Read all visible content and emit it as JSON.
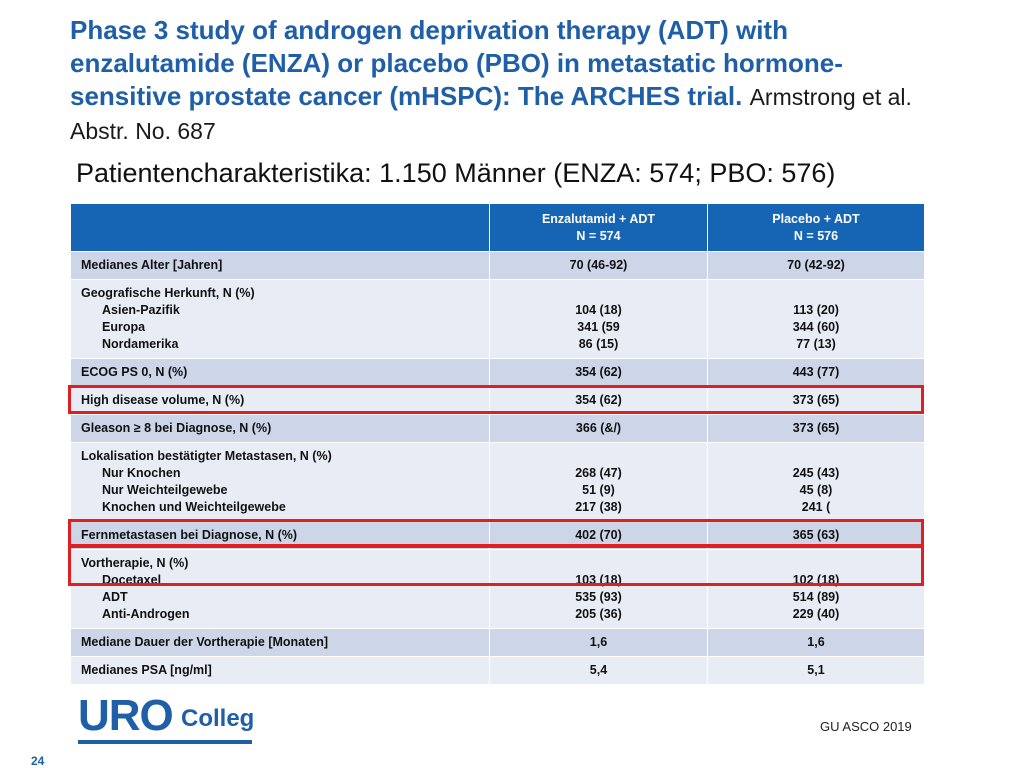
{
  "title": {
    "main": "Phase 3 study of androgen deprivation therapy (ADT) with enzalutamide (ENZA) or placebo (PBO) in metastatic hormone-sensitive prostate cancer (mHSPC): The ARCHES trial.",
    "author": "Armstrong et al. Abstr. No. 687"
  },
  "subtitle": "Patientencharakteristika: 1.150 Männer (ENZA: 574; PBO: 576)",
  "table": {
    "header": {
      "col1": "",
      "col2": [
        "Enzalutamid + ADT",
        "N = 574"
      ],
      "col3": [
        "Placebo + ADT",
        "N = 576"
      ]
    },
    "rows": [
      {
        "label": [
          "Medianes Alter [Jahren]"
        ],
        "enza": [
          "70 (46-92)"
        ],
        "pbo": [
          "70 (42-92)"
        ]
      },
      {
        "label": [
          "Geografische Herkunft, N (%)",
          "Asien-Pazifik",
          "Europa",
          "Nordamerika"
        ],
        "enza": [
          "104 (18)",
          "341 (59",
          "86 (15)"
        ],
        "pbo": [
          "113 (20)",
          "344 (60)",
          "77 (13)"
        ]
      },
      {
        "label": [
          "ECOG PS 0, N (%)"
        ],
        "enza": [
          "354 (62)"
        ],
        "pbo": [
          "443 (77)"
        ]
      },
      {
        "label": [
          "High disease volume, N (%)"
        ],
        "enza": [
          "354 (62)"
        ],
        "pbo": [
          "373 (65)"
        ]
      },
      {
        "label": [
          "Gleason ≥ 8 bei Diagnose, N (%)"
        ],
        "enza": [
          "366 (&/)"
        ],
        "pbo": [
          "373 (65)"
        ]
      },
      {
        "label": [
          "Lokalisation bestätigter Metastasen, N (%)",
          "Nur Knochen",
          "Nur Weichteilgewebe",
          "Knochen und Weichteilgewebe"
        ],
        "enza": [
          "268 (47)",
          "51 (9)",
          "217 (38)"
        ],
        "pbo": [
          "245 (43)",
          "45 (8)",
          "241 ("
        ]
      },
      {
        "label": [
          "Fernmetastasen bei Diagnose, N (%)"
        ],
        "enza": [
          "402 (70)"
        ],
        "pbo": [
          "365 (63)"
        ]
      },
      {
        "label": [
          "Vortherapie, N (%)",
          "Docetaxel",
          "ADT",
          "Anti-Androgen"
        ],
        "enza": [
          "103 (18)",
          "535 (93)",
          "205 (36)"
        ],
        "pbo": [
          "102 (18)",
          "514 (89)",
          "229 (40)"
        ]
      },
      {
        "label": [
          "Mediane Dauer der Vortherapie [Monaten]"
        ],
        "enza": [
          "1,6"
        ],
        "pbo": [
          "1,6"
        ]
      },
      {
        "label": [
          "Medianes PSA [ng/ml]"
        ],
        "enza": [
          "5,4"
        ],
        "pbo": [
          "5,1"
        ]
      }
    ],
    "colors": {
      "header_bg": "#1565b4",
      "row_odd": "#ccd6e8",
      "row_even": "#e8edf5",
      "highlight": "#e02020"
    }
  },
  "logo": {
    "uro": "URO",
    "colleg": "Colleg"
  },
  "footer": {
    "source": "GU ASCO 2019",
    "page_number": "24"
  }
}
